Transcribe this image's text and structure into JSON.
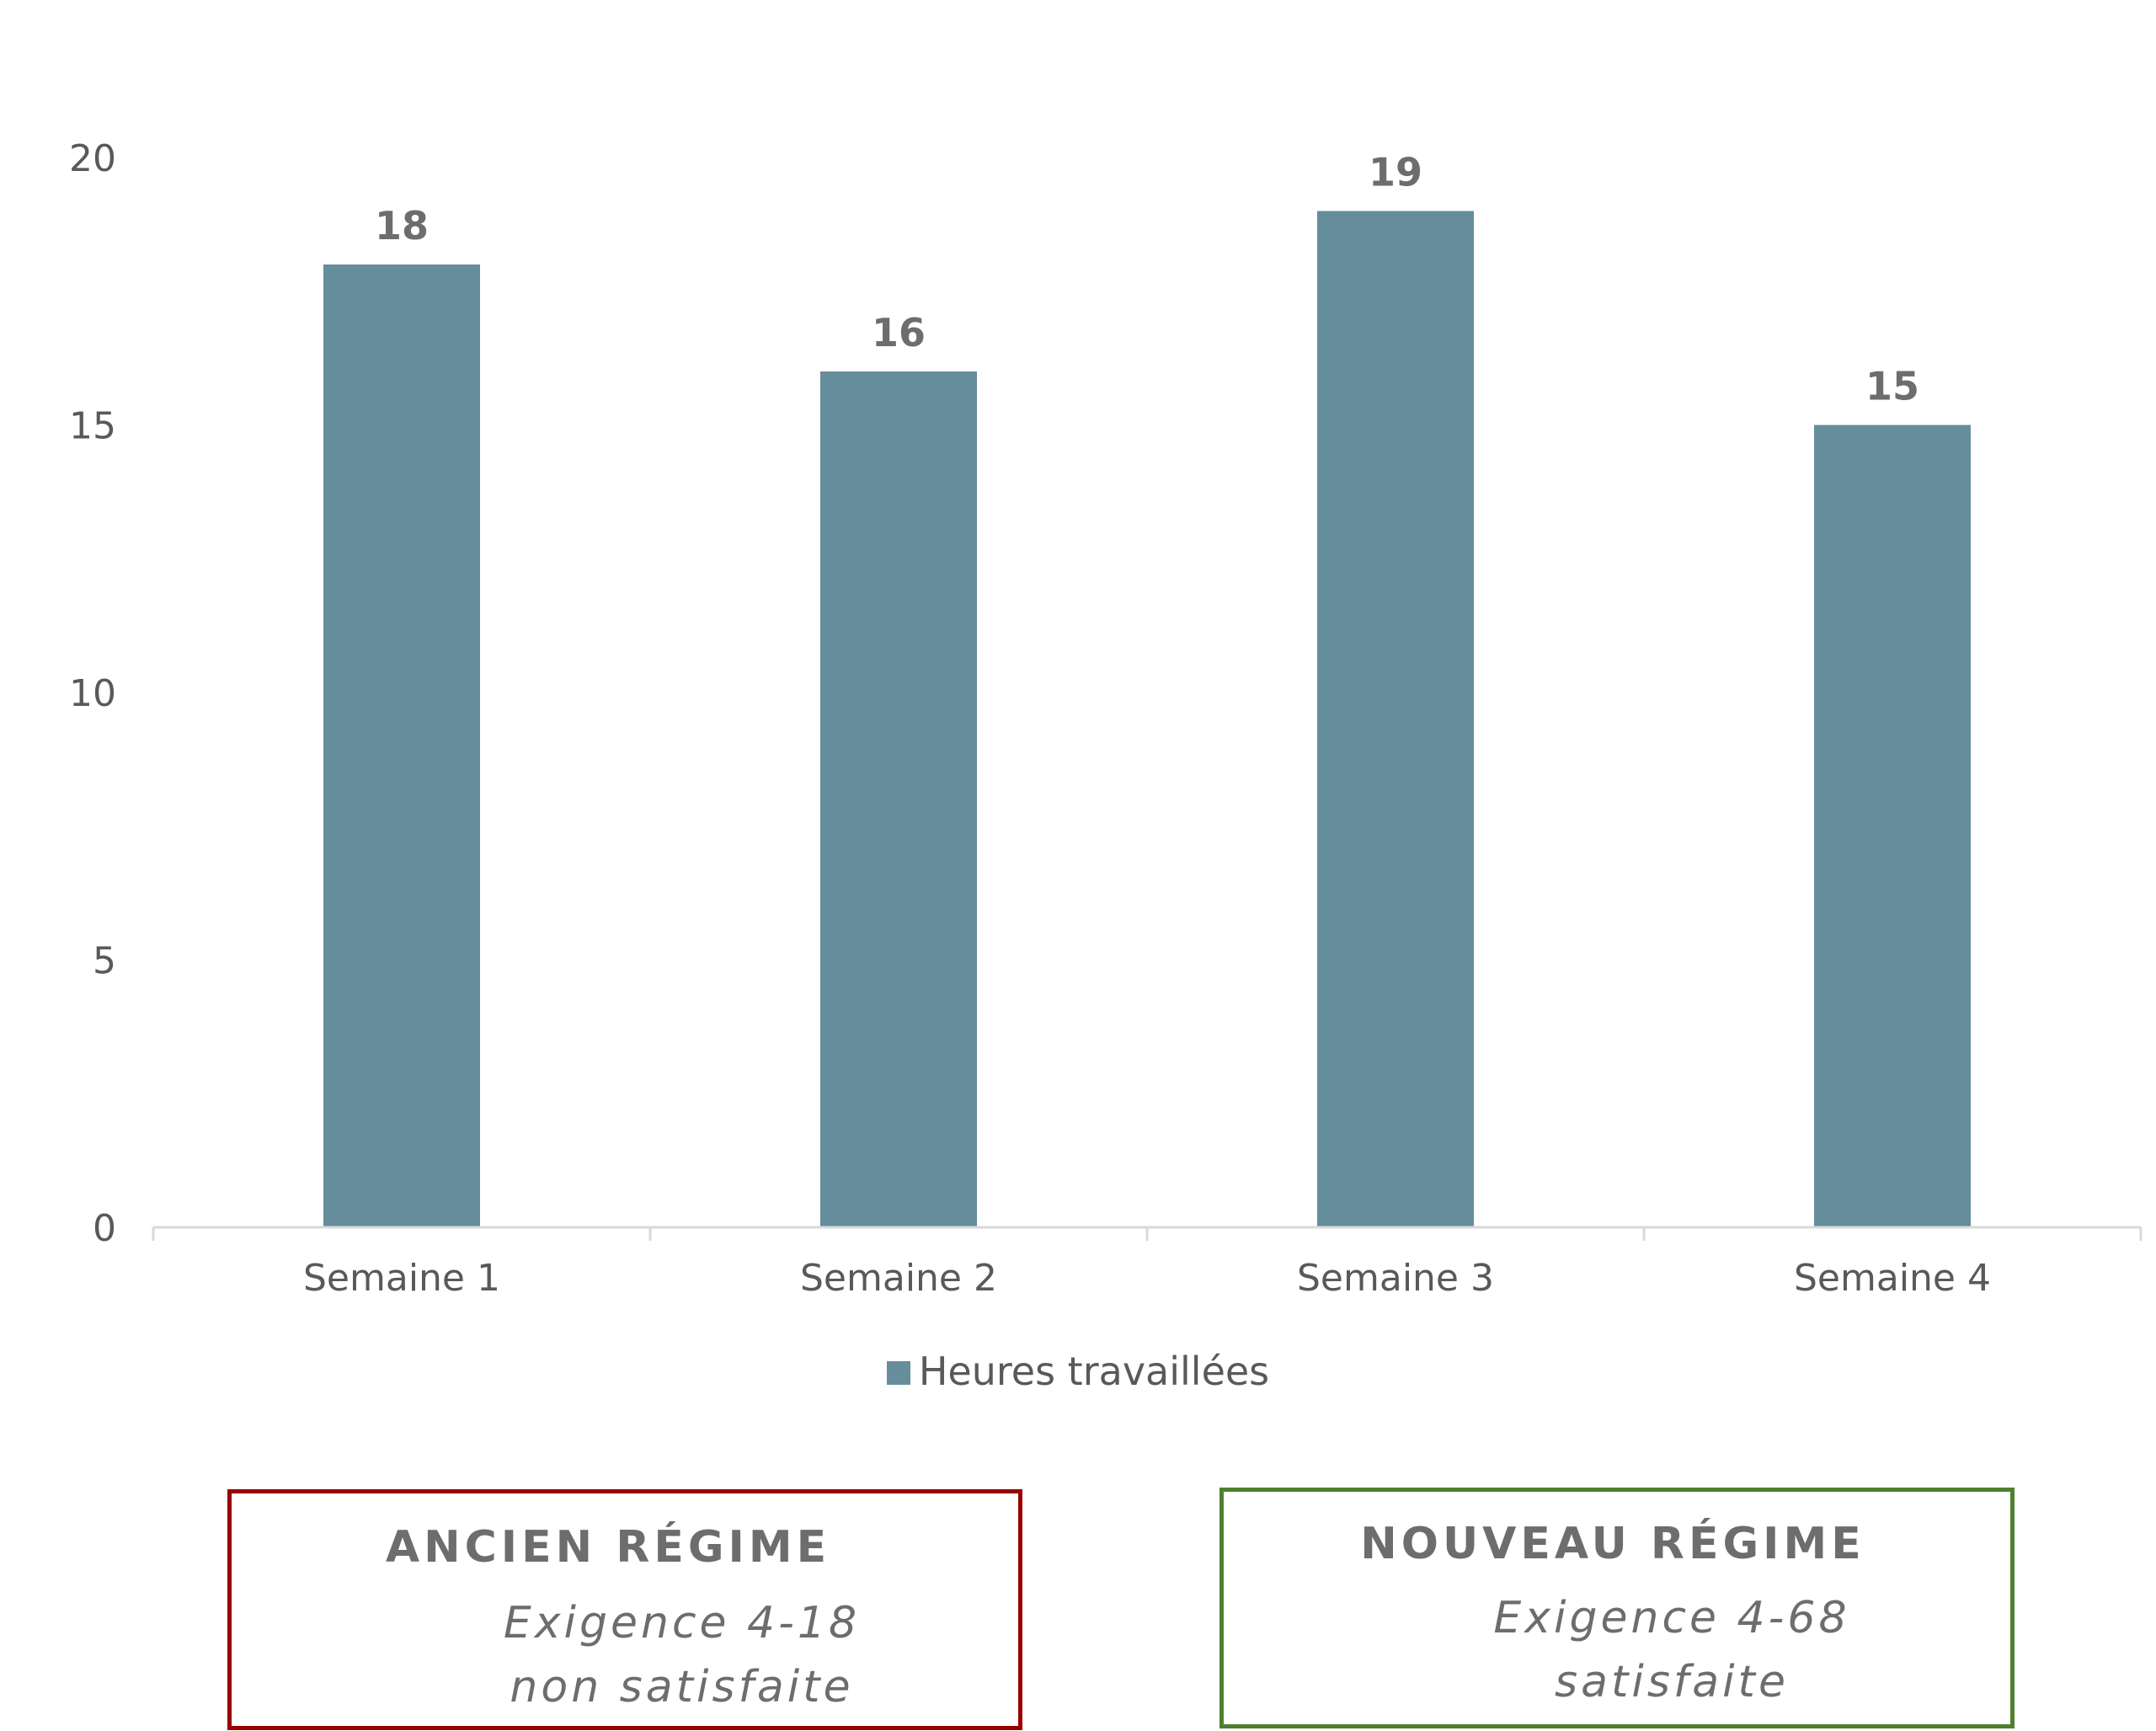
{
  "chart_data": {
    "type": "bar",
    "categories": [
      "Semaine 1",
      "Semaine 2",
      "Semaine 3",
      "Semaine 4"
    ],
    "series": [
      {
        "name": "Heures travaillées",
        "values": [
          18,
          16,
          19,
          15
        ],
        "color": "#658D9B"
      }
    ],
    "data_labels": [
      "18",
      "16",
      "19",
      "15"
    ],
    "ylim": [
      0,
      20
    ],
    "yticks": [
      0,
      5,
      10,
      15,
      20
    ],
    "grid": false,
    "legend_position": "bottom",
    "axis_color": "#d9d9d9"
  },
  "legend": {
    "label": "Heures travaillées",
    "color": "#658D9B"
  },
  "boxes": {
    "ancien": {
      "title": "ANCIEN RÉGIME",
      "line1": "Exigence 4-18",
      "line2": "non satisfaite",
      "border_color": "#990000"
    },
    "nouveau": {
      "title": "NOUVEAU RÉGIME",
      "line1": "Exigence 4-68",
      "line2": "satisfaite",
      "border_color": "#4f7f2f"
    }
  }
}
